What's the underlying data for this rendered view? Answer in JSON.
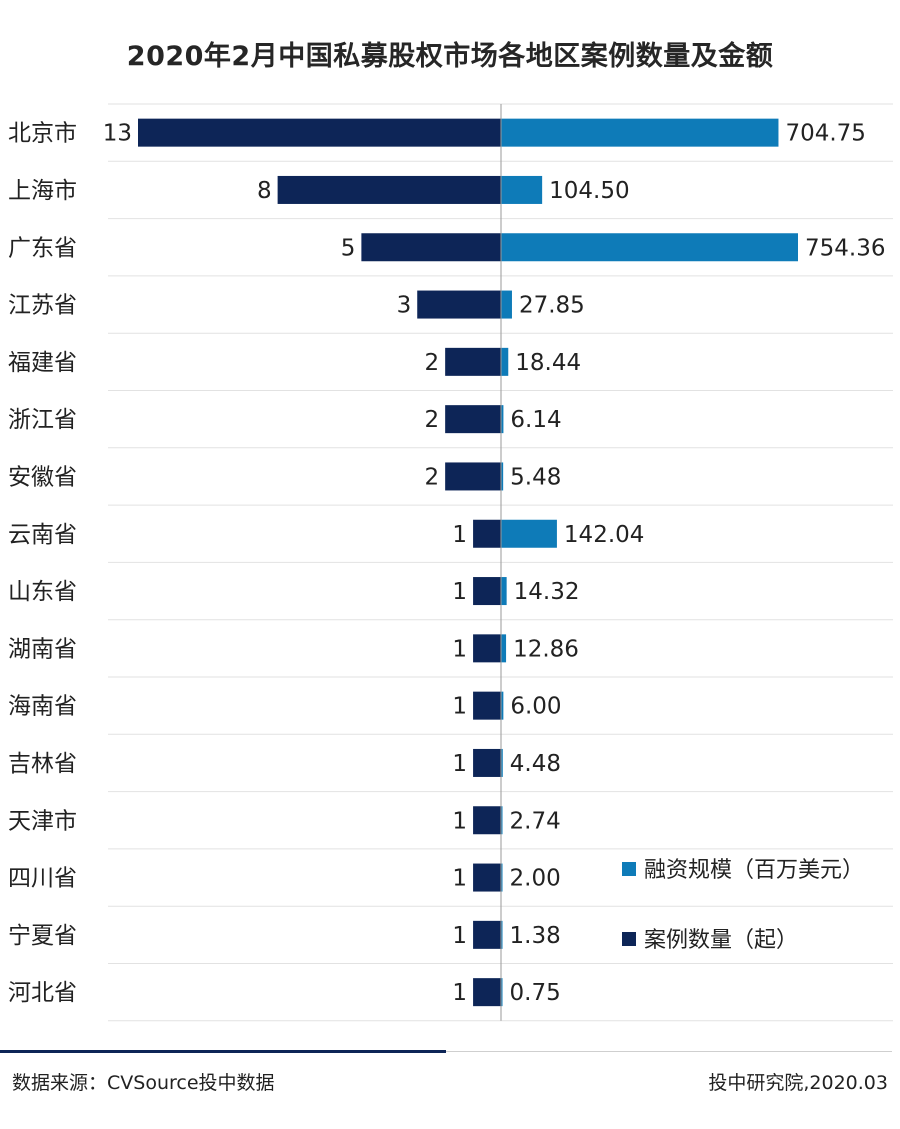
{
  "title": "2020年2月中国私募股权市场各地区案例数量及金额",
  "legend": {
    "amount_label": "融资规模（百万美元）",
    "count_label": "案例数量（起）"
  },
  "footer": {
    "source": "数据来源：CVSource投中数据",
    "credit": "投中研究院,2020.03"
  },
  "colors": {
    "count": "#0d2557",
    "amount": "#0e7bb8",
    "footer_rule": "#0d2557"
  },
  "chart_data": {
    "type": "bar",
    "orientation": "horizontal-diverging",
    "categories": [
      "北京市",
      "上海市",
      "广东省",
      "江苏省",
      "福建省",
      "浙江省",
      "安徽省",
      "云南省",
      "山东省",
      "湖南省",
      "海南省",
      "吉林省",
      "天津市",
      "四川省",
      "宁夏省",
      "河北省"
    ],
    "series": [
      {
        "name": "案例数量（起）",
        "values": [
          13,
          8,
          5,
          3,
          2,
          2,
          2,
          1,
          1,
          1,
          1,
          1,
          1,
          1,
          1,
          1
        ],
        "labels": [
          "13",
          "8",
          "5",
          "3",
          "2",
          "2",
          "2",
          "1",
          "1",
          "1",
          "1",
          "1",
          "1",
          "1",
          "1",
          "1"
        ]
      },
      {
        "name": "融资规模（百万美元）",
        "values": [
          704.75,
          104.5,
          754.36,
          27.85,
          18.44,
          6.14,
          5.48,
          142.04,
          14.32,
          12.86,
          6.0,
          4.48,
          2.74,
          2.0,
          1.38,
          0.75
        ],
        "labels": [
          "704.75",
          "104.50",
          "754.36",
          "27.85",
          "18.44",
          "6.14",
          "5.48",
          "142.04",
          "14.32",
          "12.86",
          "6.00",
          "4.48",
          "2.74",
          "2.00",
          "1.38",
          "0.75"
        ]
      }
    ],
    "legend_position": "bottom-right",
    "grid": true
  }
}
